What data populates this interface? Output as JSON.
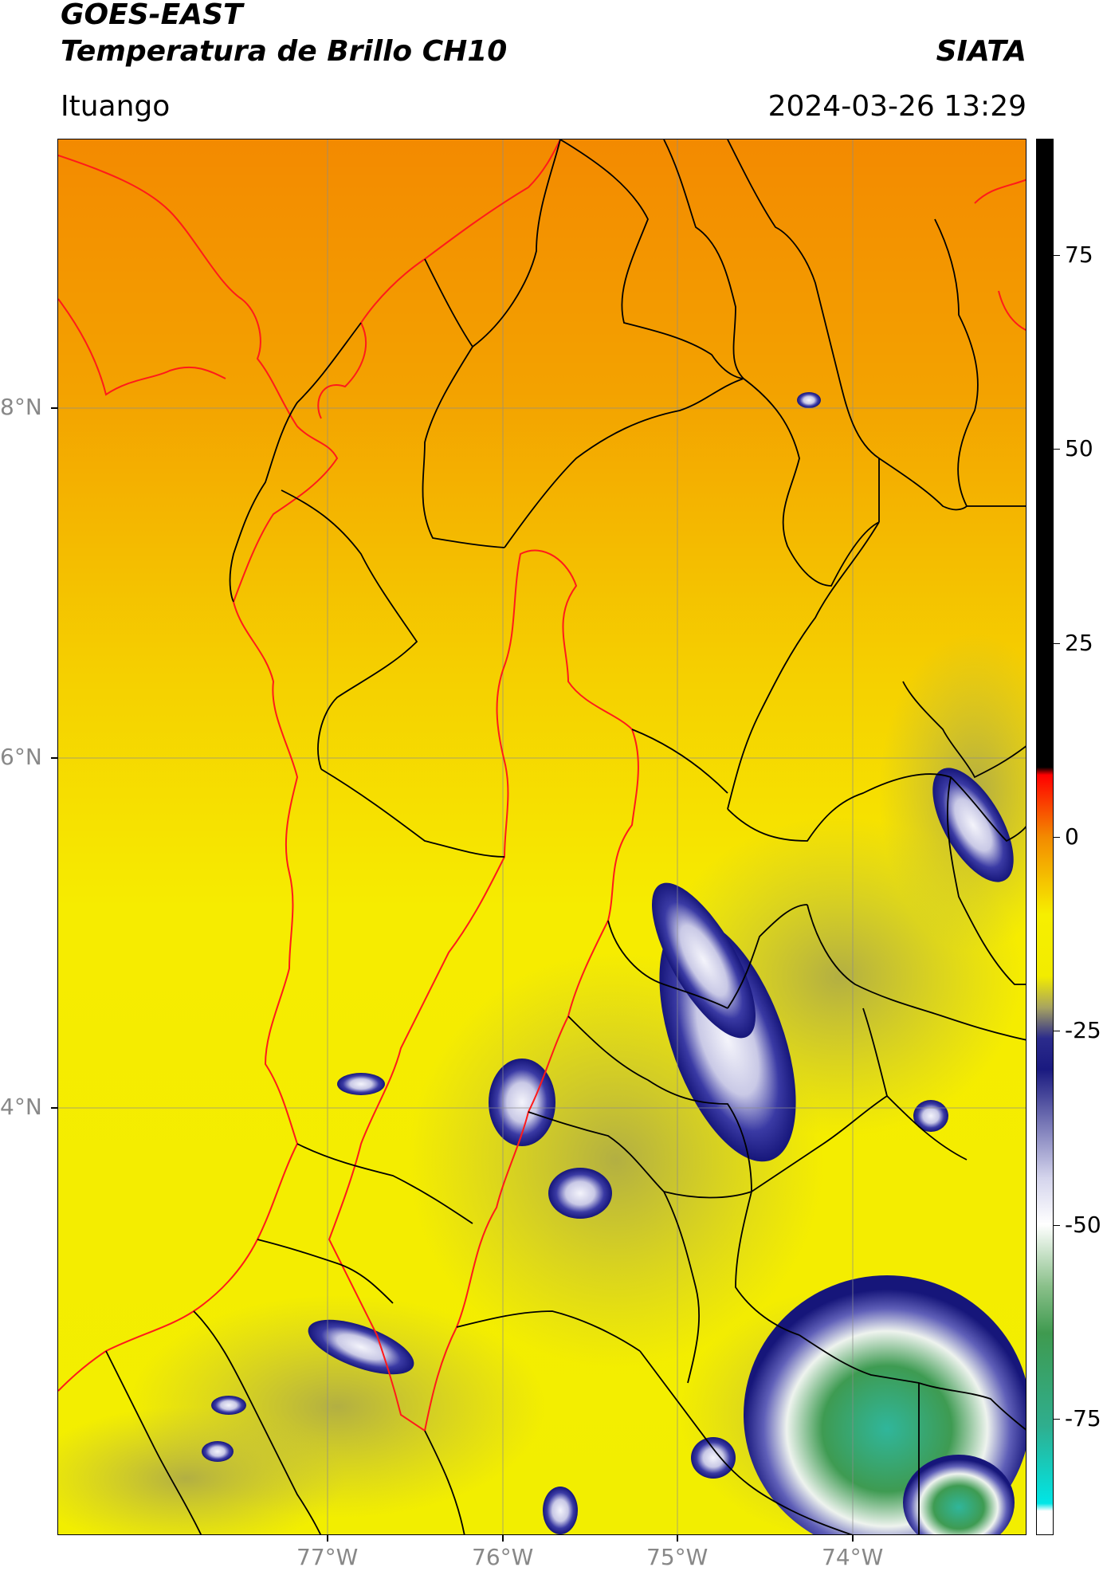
{
  "header": {
    "title": "GOES-EAST",
    "subtitle": "Temperatura de Brillo CH10",
    "organization": "SIATA",
    "location": "Ituango",
    "timestamp": "2024-03-26 13:29"
  },
  "map": {
    "lat_labels": [
      "8°N",
      "6°N",
      "4°N"
    ],
    "lon_labels": [
      "77°W",
      "76°W",
      "75°W",
      "74°W"
    ],
    "colors": {
      "warm": "#f39400",
      "yellow": "#f5f000",
      "olive": "#a6a24b",
      "navy": "#1e1e8c",
      "white": "#f0f0f8",
      "green": "#3f9a4f",
      "teal": "#2fb79a",
      "border_black": "#000000",
      "border_red": "#ff1a1a",
      "grid": "#8c8c8c"
    }
  },
  "colorbar": {
    "labels": [
      "75",
      "50",
      "25",
      "0",
      "-25",
      "-50",
      "-75"
    ],
    "values": [
      75,
      50,
      25,
      0,
      -25,
      -50,
      -75
    ],
    "min": -90,
    "max": 90
  }
}
